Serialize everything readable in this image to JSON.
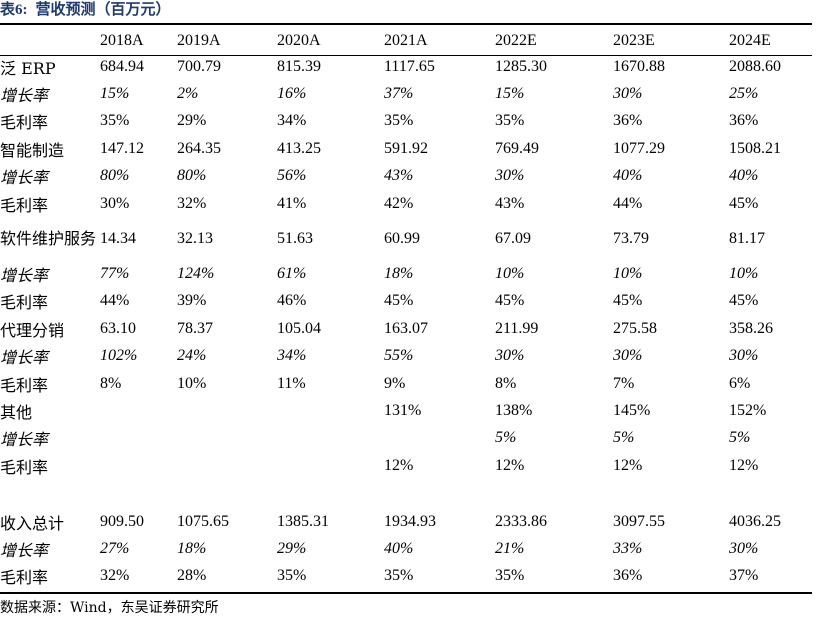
{
  "title": {
    "label": "表6:",
    "text": "营收预测（百万元）"
  },
  "columns": [
    "",
    "2018A",
    "2019A",
    "2020A",
    "2021A",
    "2022E",
    "2023E",
    "2024E"
  ],
  "rows": [
    {
      "type": "value",
      "label": "泛 ERP",
      "values": [
        "684.94",
        "700.79",
        "815.39",
        "1117.65",
        "1285.30",
        "1670.88",
        "2088.60"
      ]
    },
    {
      "type": "growth",
      "label": "增长率",
      "values": [
        "15%",
        "2%",
        "16%",
        "37%",
        "15%",
        "30%",
        "25%"
      ]
    },
    {
      "type": "margin",
      "label": "毛利率",
      "values": [
        "35%",
        "29%",
        "34%",
        "35%",
        "35%",
        "36%",
        "36%"
      ]
    },
    {
      "type": "value",
      "label": "智能制造",
      "values": [
        "147.12",
        "264.35",
        "413.25",
        "591.92",
        "769.49",
        "1077.29",
        "1508.21"
      ]
    },
    {
      "type": "growth",
      "label": "增长率",
      "values": [
        "80%",
        "80%",
        "56%",
        "43%",
        "30%",
        "40%",
        "40%"
      ]
    },
    {
      "type": "margin",
      "label": "毛利率",
      "values": [
        "30%",
        "32%",
        "41%",
        "42%",
        "43%",
        "44%",
        "45%"
      ]
    },
    {
      "type": "value",
      "label": "软件维护服务",
      "values": [
        "14.34",
        "32.13",
        "51.63",
        "60.99",
        "67.09",
        "73.79",
        "81.17"
      ]
    },
    {
      "type": "growth",
      "label": "增长率",
      "values": [
        "77%",
        "124%",
        "61%",
        "18%",
        "10%",
        "10%",
        "10%"
      ]
    },
    {
      "type": "margin",
      "label": "毛利率",
      "values": [
        "44%",
        "39%",
        "46%",
        "45%",
        "45%",
        "45%",
        "45%"
      ]
    },
    {
      "type": "value",
      "label": "代理分销",
      "values": [
        "63.10",
        "78.37",
        "105.04",
        "163.07",
        "211.99",
        "275.58",
        "358.26"
      ]
    },
    {
      "type": "growth",
      "label": "增长率",
      "values": [
        "102%",
        "24%",
        "34%",
        "55%",
        "30%",
        "30%",
        "30%"
      ]
    },
    {
      "type": "margin",
      "label": "毛利率",
      "values": [
        "8%",
        "10%",
        "11%",
        "9%",
        "8%",
        "7%",
        "6%"
      ]
    },
    {
      "type": "value",
      "label": "其他",
      "values": [
        "",
        "",
        "",
        "131%",
        "138%",
        "145%",
        "152%"
      ]
    },
    {
      "type": "growth",
      "label": "增长率",
      "values": [
        "",
        "",
        "",
        "",
        "5%",
        "5%",
        "5%"
      ]
    },
    {
      "type": "margin",
      "label": "毛利率",
      "values": [
        "",
        "",
        "",
        "12%",
        "12%",
        "12%",
        "12%"
      ]
    },
    {
      "type": "blank",
      "label": "",
      "values": [
        "",
        "",
        "",
        "",
        "",
        "",
        ""
      ]
    },
    {
      "type": "value",
      "label": "收入总计",
      "values": [
        "909.50",
        "1075.65",
        "1385.31",
        "1934.93",
        "2333.86",
        "3097.55",
        "4036.25"
      ]
    },
    {
      "type": "growth",
      "label": "增长率",
      "values": [
        "27%",
        "18%",
        "29%",
        "40%",
        "21%",
        "33%",
        "30%"
      ]
    },
    {
      "type": "margin",
      "label": "毛利率",
      "values": [
        "32%",
        "28%",
        "35%",
        "35%",
        "35%",
        "36%",
        "37%"
      ]
    }
  ],
  "source": "数据来源：Wind，东吴证券研究所",
  "colors": {
    "title": "#1f3a6e",
    "rule": "#000000"
  }
}
